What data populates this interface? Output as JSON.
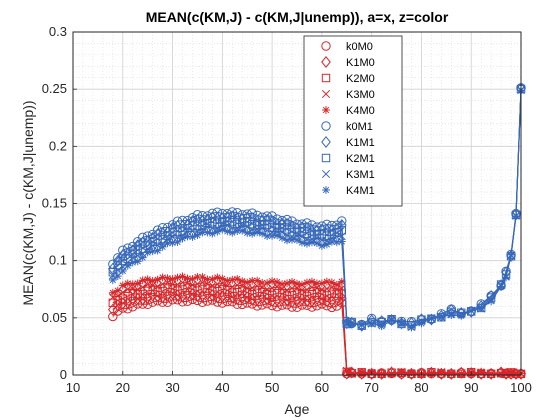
{
  "chart_data": {
    "type": "line",
    "title": "MEAN(c(KM,J) - c(KM,J|unemp)), a=x, z=color",
    "xlabel": "Age",
    "ylabel": "MEAN(c(KM,J) - c(KM,J|unemp))",
    "xlim": [
      10,
      100
    ],
    "ylim": [
      0,
      0.3
    ],
    "xticks": [
      "10",
      "20",
      "30",
      "40",
      "50",
      "60",
      "70",
      "80",
      "90",
      "100"
    ],
    "yticks": [
      "0",
      "0.05",
      "0.1",
      "0.15",
      "0.2",
      "0.25",
      "0.3"
    ],
    "grid": true,
    "minor_grid": true,
    "legend_position": "top-right",
    "colors": {
      "M0": "#d7262a",
      "M1": "#3768b9"
    },
    "series": [
      {
        "name": "k0M0",
        "marker": "circle",
        "group": "M0",
        "pre_offset": -0.01,
        "x": [
          18,
          20,
          25,
          30,
          35,
          40,
          45,
          50,
          55,
          60,
          63,
          64
        ],
        "y": [
          0.052,
          0.058,
          0.063,
          0.065,
          0.065,
          0.064,
          0.062,
          0.061,
          0.06,
          0.061,
          0.06,
          0.062
        ]
      },
      {
        "name": "K1M0",
        "marker": "diamond",
        "group": "M0",
        "pre_offset": -0.005,
        "x": [
          18,
          20,
          25,
          30,
          35,
          40,
          45,
          50,
          55,
          60,
          63,
          64
        ],
        "y": [
          0.057,
          0.063,
          0.068,
          0.07,
          0.07,
          0.069,
          0.067,
          0.066,
          0.065,
          0.066,
          0.065,
          0.067
        ]
      },
      {
        "name": "K2M0",
        "marker": "square",
        "group": "M0",
        "pre_offset": 0.0,
        "x": [
          18,
          20,
          25,
          30,
          35,
          40,
          45,
          50,
          55,
          60,
          63,
          64
        ],
        "y": [
          0.062,
          0.068,
          0.073,
          0.075,
          0.075,
          0.074,
          0.072,
          0.071,
          0.07,
          0.071,
          0.07,
          0.072
        ]
      },
      {
        "name": "K3M0",
        "marker": "x",
        "group": "M0",
        "pre_offset": 0.005,
        "x": [
          18,
          20,
          25,
          30,
          35,
          40,
          45,
          50,
          55,
          60,
          63,
          64
        ],
        "y": [
          0.067,
          0.073,
          0.078,
          0.08,
          0.08,
          0.079,
          0.077,
          0.076,
          0.075,
          0.076,
          0.075,
          0.077
        ]
      },
      {
        "name": "K4M0",
        "marker": "asterisk",
        "group": "M0",
        "pre_offset": 0.01,
        "x": [
          18,
          20,
          25,
          30,
          35,
          40,
          45,
          50,
          55,
          60,
          63,
          64
        ],
        "y": [
          0.072,
          0.078,
          0.083,
          0.085,
          0.085,
          0.084,
          0.082,
          0.081,
          0.08,
          0.081,
          0.08,
          0.082
        ]
      },
      {
        "name": "k0M1",
        "marker": "circle",
        "group": "M1",
        "pre_offset": 0.01,
        "x": [
          18,
          20,
          25,
          30,
          35,
          40,
          45,
          50,
          55,
          60,
          63,
          64
        ],
        "y": [
          0.098,
          0.108,
          0.122,
          0.132,
          0.139,
          0.142,
          0.141,
          0.138,
          0.133,
          0.13,
          0.132,
          0.134
        ]
      },
      {
        "name": "K1M1",
        "marker": "diamond",
        "group": "M1",
        "pre_offset": 0.005,
        "x": [
          18,
          20,
          25,
          30,
          35,
          40,
          45,
          50,
          55,
          60,
          63,
          64
        ],
        "y": [
          0.094,
          0.104,
          0.118,
          0.128,
          0.135,
          0.138,
          0.137,
          0.134,
          0.129,
          0.126,
          0.128,
          0.13
        ]
      },
      {
        "name": "K2M1",
        "marker": "square",
        "group": "M1",
        "pre_offset": 0.0,
        "x": [
          18,
          20,
          25,
          30,
          35,
          40,
          45,
          50,
          55,
          60,
          63,
          64
        ],
        "y": [
          0.09,
          0.1,
          0.114,
          0.124,
          0.131,
          0.134,
          0.133,
          0.13,
          0.125,
          0.122,
          0.124,
          0.126
        ]
      },
      {
        "name": "K3M1",
        "marker": "x",
        "group": "M1",
        "pre_offset": -0.005,
        "x": [
          18,
          20,
          25,
          30,
          35,
          40,
          45,
          50,
          55,
          60,
          63,
          64
        ],
        "y": [
          0.086,
          0.096,
          0.11,
          0.12,
          0.127,
          0.13,
          0.129,
          0.126,
          0.121,
          0.118,
          0.12,
          0.122
        ]
      },
      {
        "name": "K4M1",
        "marker": "asterisk",
        "group": "M1",
        "pre_offset": -0.01,
        "x": [
          18,
          20,
          25,
          30,
          35,
          40,
          45,
          50,
          55,
          60,
          63,
          64
        ],
        "y": [
          0.082,
          0.092,
          0.106,
          0.116,
          0.123,
          0.126,
          0.125,
          0.122,
          0.117,
          0.114,
          0.116,
          0.118
        ]
      }
    ],
    "retired_x": [
      65,
      66,
      68,
      70,
      72,
      74,
      76,
      78,
      80,
      82,
      84,
      86,
      88,
      90,
      92,
      94,
      96,
      97,
      98,
      99,
      100
    ],
    "retired_M0": [
      0.002,
      0.001,
      0.001,
      0.001,
      0.001,
      0.001,
      0.001,
      0.001,
      0.001,
      0.001,
      0.001,
      0.001,
      0.001,
      0.001,
      0.001,
      0.001,
      0.001,
      0.001,
      0.001,
      0.001,
      0.001
    ],
    "retired_M1": [
      0.046,
      0.045,
      0.044,
      0.047,
      0.045,
      0.048,
      0.046,
      0.044,
      0.047,
      0.049,
      0.052,
      0.055,
      0.053,
      0.056,
      0.06,
      0.067,
      0.078,
      0.088,
      0.105,
      0.14,
      0.25
    ]
  }
}
